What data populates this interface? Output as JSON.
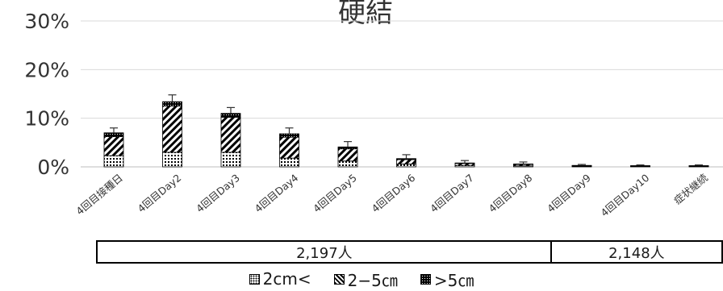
{
  "chart_data": {
    "type": "bar",
    "stacked": true,
    "title": "硬結",
    "ylim": [
      0,
      30
    ],
    "yticks": [
      "0%",
      "10%",
      "20%",
      "30%"
    ],
    "ytick_values": [
      0,
      10,
      20,
      30
    ],
    "grid": true,
    "categories": [
      "4回目接種日",
      "4回目Day2",
      "4回目Day3",
      "4回目Day4",
      "4回目Day5",
      "4回目Day6",
      "4回目Day7",
      "4回目Day8",
      "4回目Day9",
      "4回目Day10",
      "症状継続"
    ],
    "series": [
      {
        "name": "2cm<",
        "values": [
          2.3,
          3.0,
          3.0,
          1.8,
          1.2,
          0.6,
          0.3,
          0.2,
          0.1,
          0.1,
          0.1
        ]
      },
      {
        "name": "2−5㎝",
        "values": [
          3.9,
          9.5,
          7.2,
          4.3,
          2.5,
          0.9,
          0.4,
          0.3,
          0.15,
          0.1,
          0.1
        ]
      },
      {
        "name": ">5㎝",
        "values": [
          0.8,
          0.9,
          0.8,
          0.7,
          0.4,
          0.2,
          0.1,
          0.1,
          0.05,
          0.05,
          0.05
        ]
      }
    ],
    "error_tops": [
      8.0,
      14.8,
      12.2,
      8.0,
      5.2,
      2.5,
      1.3,
      1.0,
      0.5,
      0.4,
      0.4
    ],
    "legend_position": "bottom"
  },
  "sample_groups": [
    {
      "label": "2,197人",
      "span": 8
    },
    {
      "label": "2,148人",
      "span": 3
    }
  ],
  "legend": [
    {
      "label": "2cm<",
      "pattern": "dots"
    },
    {
      "label": "2−5㎝",
      "pattern": "hatch"
    },
    {
      "label": ">5㎝",
      "pattern": "dense"
    }
  ]
}
